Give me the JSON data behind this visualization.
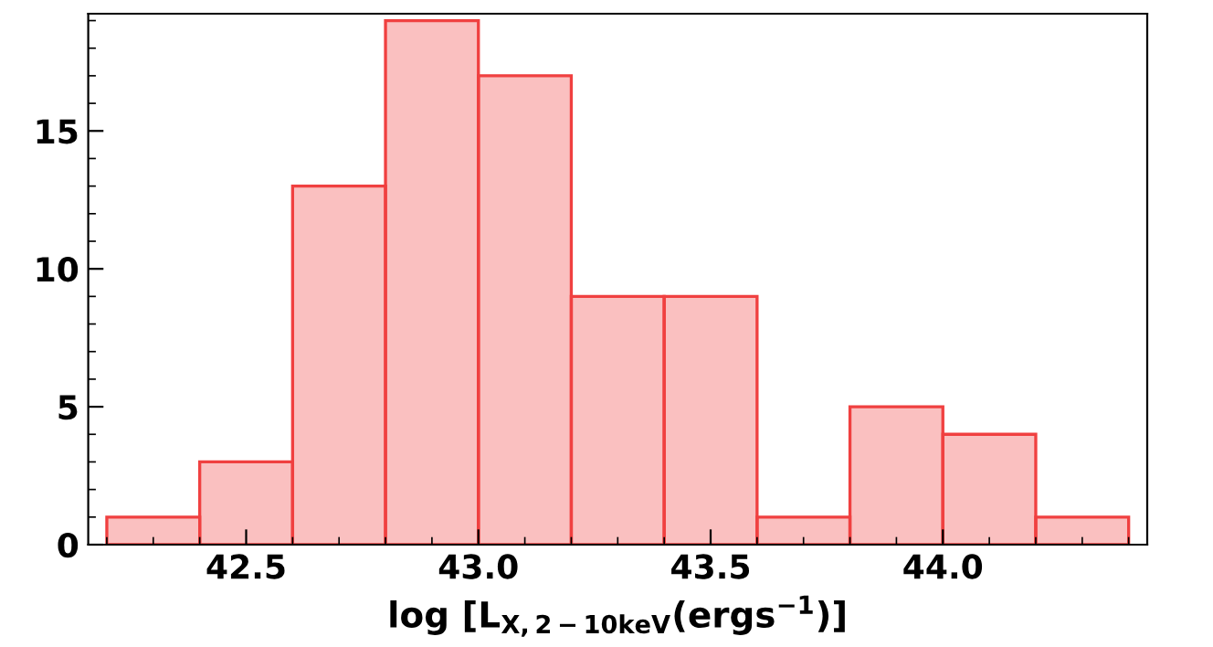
{
  "chart_data": {
    "type": "histogram",
    "xlabel": "log [L$_{X,2−10keV}$(ergs$^{−1}$)]",
    "bins": [
      42.2,
      42.4,
      42.6,
      42.8,
      43.0,
      43.2,
      43.4,
      43.6,
      43.8,
      44.0,
      44.2,
      44.4
    ],
    "values": [
      1,
      3,
      13,
      19,
      17,
      9,
      9,
      1,
      5,
      4,
      1
    ],
    "color": "#f04040",
    "xlim": [
      42.16,
      44.44
    ],
    "xticks": [
      42.5,
      {
        "value": 43.0,
        "label": "43.0"
      },
      43.5,
      {
        "value": 44.0,
        "label": "44.0"
      }
    ],
    "ylim": [
      0,
      19.25
    ],
    "yticks": [
      0,
      5,
      10,
      15
    ],
    "grid": false,
    "legend": false
  }
}
